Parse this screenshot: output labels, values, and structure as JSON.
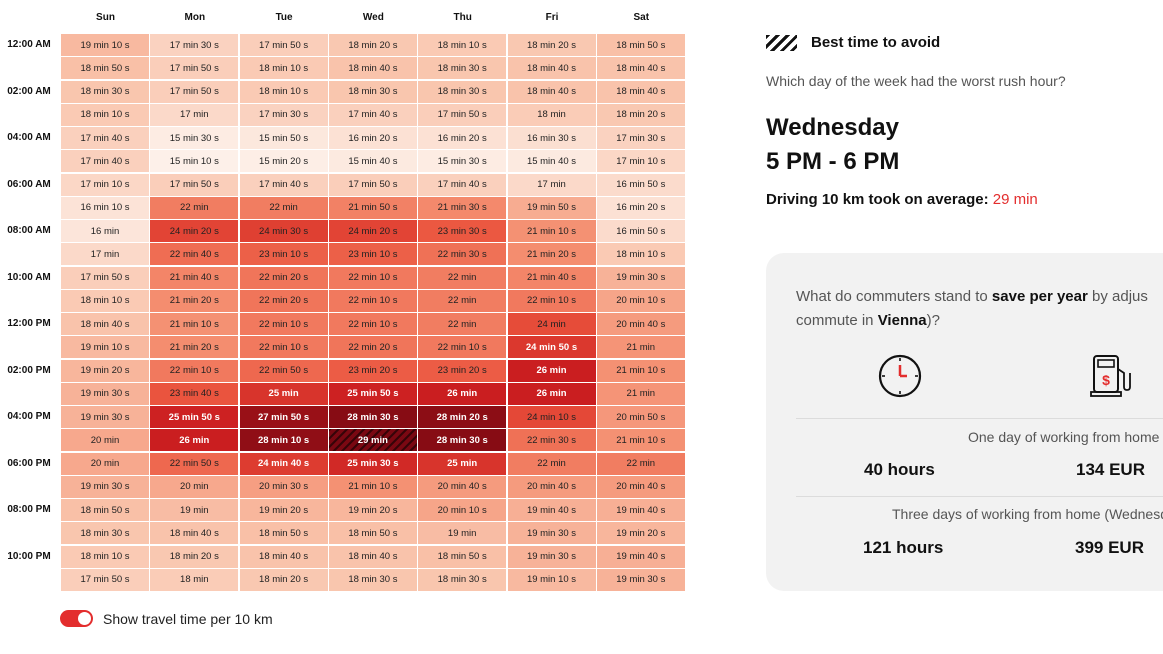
{
  "heatmap": {
    "days": [
      "Sun",
      "Mon",
      "Tue",
      "Wed",
      "Thu",
      "Fri",
      "Sat"
    ],
    "time_labels": [
      "12:00 AM",
      "02:00 AM",
      "04:00 AM",
      "06:00 AM",
      "08:00 AM",
      "10:00 AM",
      "12:00 PM",
      "02:00 PM",
      "04:00 PM",
      "06:00 PM",
      "08:00 PM",
      "10:00 PM"
    ],
    "rows": [
      [
        "19 min 10 s",
        "17 min 30 s",
        "17 min 50 s",
        "18 min 20 s",
        "18 min 10 s",
        "18 min 20 s",
        "18 min 50 s"
      ],
      [
        "18 min 50 s",
        "17 min 50 s",
        "18 min 10 s",
        "18 min 40 s",
        "18 min 30 s",
        "18 min 40 s",
        "18 min 40 s"
      ],
      [
        "18 min 30 s",
        "17 min 50 s",
        "18 min 10 s",
        "18 min 30 s",
        "18 min 30 s",
        "18 min 40 s",
        "18 min 40 s"
      ],
      [
        "18 min 10 s",
        "17 min",
        "17 min 30 s",
        "17 min 40 s",
        "17 min 50 s",
        "18 min",
        "18 min 20 s"
      ],
      [
        "17 min 40 s",
        "15 min 30 s",
        "15 min 50 s",
        "16 min 20 s",
        "16 min 20 s",
        "16 min 30 s",
        "17 min 30 s"
      ],
      [
        "17 min 40 s",
        "15 min 10 s",
        "15 min 20 s",
        "15 min 40 s",
        "15 min 30 s",
        "15 min 40 s",
        "17 min 10 s"
      ],
      [
        "17 min 10 s",
        "17 min 50 s",
        "17 min 40 s",
        "17 min 50 s",
        "17 min 40 s",
        "17 min",
        "16 min 50 s"
      ],
      [
        "16 min 10 s",
        "22 min",
        "22 min",
        "21 min 50 s",
        "21 min 30 s",
        "19 min 50 s",
        "16 min 20 s"
      ],
      [
        "16 min",
        "24 min 20 s",
        "24 min 30 s",
        "24 min 20 s",
        "23 min 30 s",
        "21 min 10 s",
        "16 min 50 s"
      ],
      [
        "17 min",
        "22 min 40 s",
        "23 min 10 s",
        "23 min 10 s",
        "22 min 30 s",
        "21 min 20 s",
        "18 min 10 s"
      ],
      [
        "17 min 50 s",
        "21 min 40 s",
        "22 min 20 s",
        "22 min 10 s",
        "22 min",
        "21 min 40 s",
        "19 min 30 s"
      ],
      [
        "18 min 10 s",
        "21 min 20 s",
        "22 min 20 s",
        "22 min 10 s",
        "22 min",
        "22 min 10 s",
        "20 min 10 s"
      ],
      [
        "18 min 40 s",
        "21 min 10 s",
        "22 min 10 s",
        "22 min 10 s",
        "22 min",
        "24 min",
        "20 min 40 s"
      ],
      [
        "19 min 10 s",
        "21 min 20 s",
        "22 min 10 s",
        "22 min 20 s",
        "22 min 10 s",
        "24 min 50 s",
        "21 min"
      ],
      [
        "19 min 20 s",
        "22 min 10 s",
        "22 min 50 s",
        "23 min 20 s",
        "23 min 20 s",
        "26 min",
        "21 min 10 s"
      ],
      [
        "19 min 30 s",
        "23 min 40 s",
        "25 min",
        "25 min 50 s",
        "26 min",
        "26 min",
        "21 min"
      ],
      [
        "19 min 30 s",
        "25 min 50 s",
        "27 min 50 s",
        "28 min 30 s",
        "28 min 20 s",
        "24 min 10 s",
        "20 min 50 s"
      ],
      [
        "20 min",
        "26 min",
        "28 min 10 s",
        "29 min",
        "28 min 30 s",
        "22 min 30 s",
        "21 min 10 s"
      ],
      [
        "20 min",
        "22 min 50 s",
        "24 min 40 s",
        "25 min 30 s",
        "25 min",
        "22 min",
        "22 min"
      ],
      [
        "19 min 30 s",
        "20 min",
        "20 min 30 s",
        "21 min 10 s",
        "20 min 40 s",
        "20 min 40 s",
        "20 min 40 s"
      ],
      [
        "18 min 50 s",
        "19 min",
        "19 min 20 s",
        "19 min 20 s",
        "20 min 10 s",
        "19 min 40 s",
        "19 min 40 s"
      ],
      [
        "18 min 30 s",
        "18 min 40 s",
        "18 min 50 s",
        "18 min 50 s",
        "19 min",
        "19 min 30 s",
        "19 min 20 s"
      ],
      [
        "18 min 10 s",
        "18 min 20 s",
        "18 min 40 s",
        "18 min 40 s",
        "18 min 50 s",
        "19 min 30 s",
        "19 min 40 s"
      ],
      [
        "17 min 50 s",
        "18 min",
        "18 min 20 s",
        "18 min 30 s",
        "18 min 30 s",
        "19 min 10 s",
        "19 min 30 s"
      ]
    ],
    "highlight": {
      "row": 17,
      "col": 3
    },
    "toggle_label": "Show travel time per 10 km",
    "toggle_on": true
  },
  "avoid": {
    "title": "Best time to avoid",
    "question": "Which day of the week had the worst rush hour?",
    "day": "Wednesday",
    "time": "5 PM - 6 PM",
    "driving_prefix": "Driving 10 km took on average:",
    "driving_value": "29 min"
  },
  "savings": {
    "q_part1": "What do commuters stand to ",
    "q_bold1": "save per year",
    "q_part2": " by adjus",
    "q_part3": "commute in ",
    "q_bold2": "Vienna",
    "q_part4": ")?",
    "icons": [
      "clock-icon",
      "fuel-pump-icon"
    ],
    "scenarios": [
      {
        "label": "One day of working from home",
        "hours": "40 hours",
        "money": "134 EUR"
      },
      {
        "label": "Three days of working from home (Wednesd",
        "hours": "121 hours",
        "money": "399 EUR"
      }
    ]
  },
  "colors": {
    "accent": "#e32d2d",
    "heat_min": "#fdeee6",
    "heat_max": "#7d0a12"
  }
}
